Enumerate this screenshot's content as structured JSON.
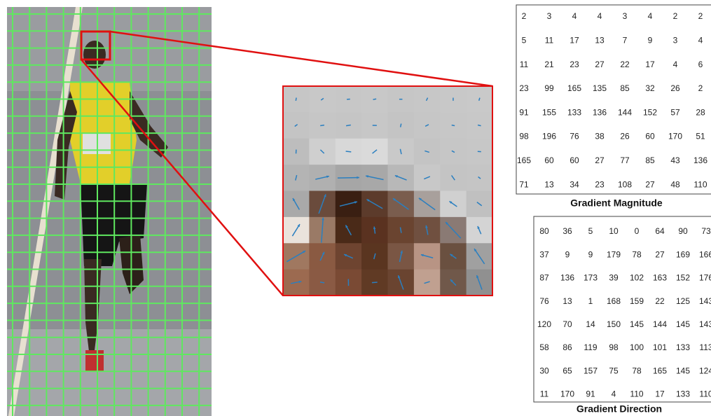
{
  "magnitude": {
    "label": "Gradient Magnitude",
    "rows": [
      [
        2,
        3,
        4,
        4,
        3,
        4,
        2,
        2
      ],
      [
        5,
        11,
        17,
        13,
        7,
        9,
        3,
        4
      ],
      [
        11,
        21,
        23,
        27,
        22,
        17,
        4,
        6
      ],
      [
        23,
        99,
        165,
        135,
        85,
        32,
        26,
        2
      ],
      [
        91,
        155,
        133,
        136,
        144,
        152,
        57,
        28
      ],
      [
        98,
        196,
        76,
        38,
        26,
        60,
        170,
        51
      ],
      [
        165,
        60,
        60,
        27,
        77,
        85,
        43,
        136
      ],
      [
        71,
        13,
        34,
        23,
        108,
        27,
        48,
        110
      ]
    ]
  },
  "direction": {
    "label": "Gradient Direction",
    "rows": [
      [
        80,
        36,
        5,
        10,
        0,
        64,
        90,
        73
      ],
      [
        37,
        9,
        9,
        179,
        78,
        27,
        169,
        166
      ],
      [
        87,
        136,
        173,
        39,
        102,
        163,
        152,
        176
      ],
      [
        76,
        13,
        1,
        168,
        159,
        22,
        125,
        143
      ],
      [
        120,
        70,
        14,
        150,
        145,
        144,
        145,
        143
      ],
      [
        58,
        86,
        119,
        98,
        100,
        101,
        133,
        113
      ],
      [
        30,
        65,
        157,
        75,
        78,
        165,
        145,
        124
      ],
      [
        11,
        170,
        91,
        4,
        110,
        17,
        133,
        110
      ]
    ]
  }
}
